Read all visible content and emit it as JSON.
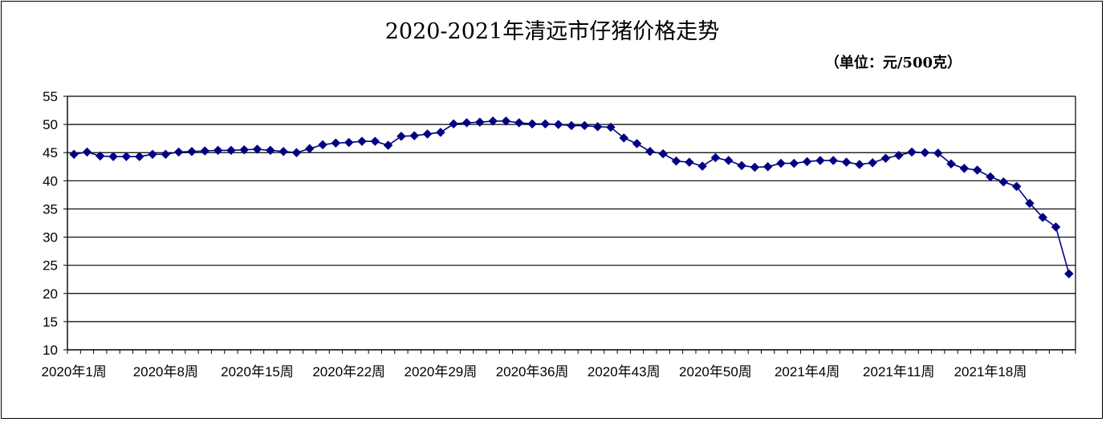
{
  "chart_data": {
    "type": "line",
    "title": "2020-2021年清远市仔猪价格走势",
    "unit_label": "（单位：元/500克）",
    "xlabel": "",
    "ylabel": "",
    "ylim": [
      10,
      55
    ],
    "yticks": [
      10,
      15,
      20,
      25,
      30,
      35,
      40,
      45,
      50,
      55
    ],
    "grid": true,
    "legend": "none",
    "x_tick_labels": [
      {
        "index": 0,
        "label": "2020年1周"
      },
      {
        "index": 7,
        "label": "2020年8周"
      },
      {
        "index": 14,
        "label": "2020年15周"
      },
      {
        "index": 21,
        "label": "2020年22周"
      },
      {
        "index": 28,
        "label": "2020年29周"
      },
      {
        "index": 35,
        "label": "2020年36周"
      },
      {
        "index": 42,
        "label": "2020年43周"
      },
      {
        "index": 49,
        "label": "2020年50周"
      },
      {
        "index": 56,
        "label": "2021年4周"
      },
      {
        "index": 63,
        "label": "2021年11周"
      },
      {
        "index": 70,
        "label": "2021年18周"
      }
    ],
    "series": [
      {
        "name": "",
        "color": "#000080",
        "marker": "diamond",
        "values": [
          44.7,
          45.1,
          44.4,
          44.3,
          44.3,
          44.3,
          44.7,
          44.7,
          45.1,
          45.2,
          45.3,
          45.4,
          45.4,
          45.5,
          45.6,
          45.4,
          45.2,
          45.0,
          45.7,
          46.4,
          46.7,
          46.8,
          47.0,
          47.0,
          46.3,
          47.9,
          48.0,
          48.3,
          48.6,
          50.1,
          50.3,
          50.4,
          50.6,
          50.6,
          50.3,
          50.1,
          50.1,
          50.0,
          49.8,
          49.8,
          49.6,
          49.5,
          47.6,
          46.6,
          45.2,
          44.8,
          43.5,
          43.3,
          42.6,
          44.1,
          43.6,
          42.7,
          42.4,
          42.5,
          43.1,
          43.1,
          43.4,
          43.6,
          43.6,
          43.3,
          42.9,
          43.2,
          44.0,
          44.5,
          45.1,
          45.0,
          44.9,
          43.0,
          42.2,
          41.9,
          40.7,
          39.8,
          39.0,
          36.0,
          33.5,
          31.8,
          23.5
        ]
      }
    ]
  }
}
